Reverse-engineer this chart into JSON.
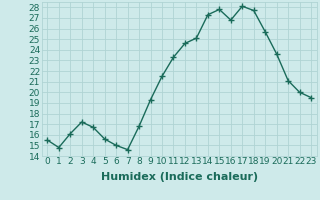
{
  "x": [
    0,
    1,
    2,
    3,
    4,
    5,
    6,
    7,
    8,
    9,
    10,
    11,
    12,
    13,
    14,
    15,
    16,
    17,
    18,
    19,
    20,
    21,
    22,
    23
  ],
  "y": [
    15.5,
    14.8,
    16.1,
    17.2,
    16.7,
    15.6,
    15.0,
    14.6,
    16.8,
    19.3,
    21.5,
    23.3,
    24.6,
    25.1,
    27.3,
    27.8,
    26.8,
    28.1,
    27.7,
    25.7,
    23.6,
    21.1,
    20.0,
    19.5
  ],
  "line_color": "#1a6b5a",
  "marker": "+",
  "marker_size": 4,
  "bg_color": "#ceeaea",
  "grid_color": "#b0d4d4",
  "xlabel": "Humidex (Indice chaleur)",
  "ylim": [
    14,
    28.5
  ],
  "xlim": [
    -0.5,
    23.5
  ],
  "yticks": [
    14,
    15,
    16,
    17,
    18,
    19,
    20,
    21,
    22,
    23,
    24,
    25,
    26,
    27,
    28
  ],
  "xticks": [
    0,
    1,
    2,
    3,
    4,
    5,
    6,
    7,
    8,
    9,
    10,
    11,
    12,
    13,
    14,
    15,
    16,
    17,
    18,
    19,
    20,
    21,
    22,
    23
  ],
  "xlabel_fontsize": 8,
  "tick_fontsize": 6.5,
  "linewidth": 1.0,
  "marker_linewidth": 1.0
}
